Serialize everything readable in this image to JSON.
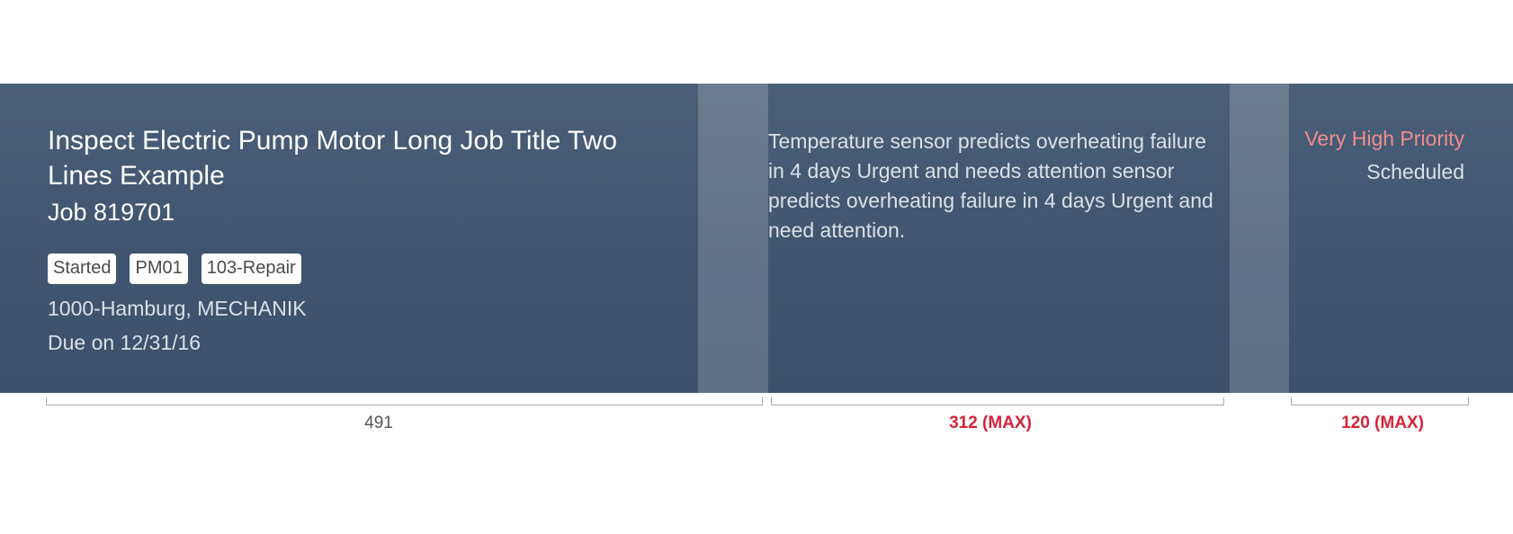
{
  "job_card": {
    "title": "Inspect Electric Pump Motor Long Job Title Two Lines Example",
    "job_number": "Job 819701",
    "tags": [
      "Started",
      "PM01",
      "103-Repair"
    ],
    "location": "1000-Hamburg, MECHANIK",
    "due": "Due on 12/31/16",
    "description": "Temperature sensor predicts overheating failure in 4 days Urgent and needs attention sensor predicts overheating failure in 4 days Urgent and need attention.",
    "priority": "Very High Priority",
    "status": "Scheduled"
  },
  "measurements": {
    "column1": "491",
    "column2": "312 (MAX)",
    "column3": "120 (MAX)"
  },
  "colors": {
    "panel": "#3f5570",
    "priority": "#f28c8c",
    "max_label": "#d6223a"
  }
}
